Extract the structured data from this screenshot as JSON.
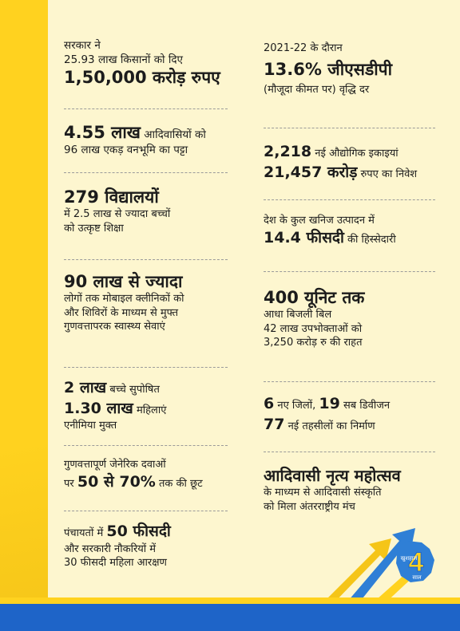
{
  "left": [
    {
      "lines": [
        "सरकार ने",
        "25.93 लाख किसानों को दिए",
        "1,50,000 करोड़ रुपए"
      ]
    },
    {
      "big": "4.55 लाख",
      "rest1": " आदिवासियों को",
      "line2": "96 लाख एकड़ वनभूमि का पट्टा"
    },
    {
      "big": "279 विद्यालयों",
      "line2": "में 2.5 लाख से ज्यादा बच्चों",
      "line3": "को उत्कृष्ट शिक्षा"
    },
    {
      "big": "90 लाख से ज्यादा",
      "line2": "लोगों तक मोबाइल क्लीनिकों को",
      "line3": "और शिविरों के माध्यम से मुफ्त",
      "line4": "गुणवत्तापरक स्वास्थ्य सेवाएं"
    },
    {
      "big1": "2 लाख",
      "rest1": " बच्चे सुपोषित",
      "big2": "1.30 लाख",
      "rest2": " महिलाएं",
      "line3": "एनीमिया मुक्त"
    },
    {
      "line1": "गुणवत्तापूर्ण जेनेरिक दवाओं",
      "pre2": "पर ",
      "big2": "50 से 70%",
      "rest2": " तक की छूट"
    },
    {
      "pre1": "पंचायतों में ",
      "big1": "50 फीसदी",
      "line2": "और सरकारी नौकरियों में",
      "line3": "30 फीसदी महिला आरक्षण"
    }
  ],
  "right": [
    {
      "line1": "2021-22 के दौरान",
      "big": "13.6% जीएसडीपी",
      "line3": "(मौजूदा कीमत पर) वृद्धि दर"
    },
    {
      "big1": "2,218",
      "rest1": " नई औद्योगिक इकाइयां",
      "big2": "21,457 करोड़",
      "rest2": " रुपए का निवेश"
    },
    {
      "line1": "देश के कुल खनिज उत्पादन में",
      "big": "14.4 फीसदी",
      "rest": " की हिस्सेदारी"
    },
    {
      "big": "400 यूनिट तक",
      "line2": "आधा बिजली बिल",
      "line3": "42 लाख उपभोक्ताओं को",
      "line4": "3,250 करोड़ रु की राहत"
    },
    {
      "big1": "6",
      "rest1": " नए जिलों, ",
      "big1b": "19",
      "rest1b": " सब डिवीजन",
      "big2": "77",
      "rest2": " नई तहसीलों का निर्माण"
    },
    {
      "big": "आदिवासी नृत्य महोत्सव",
      "line2": "के माध्यम से आदिवासी संस्कृति",
      "line3": "को मिला अंतरराष्ट्रीय मंच"
    }
  ],
  "logo": {
    "number": "4",
    "top": "खुशहाल",
    "bottom": "साल"
  },
  "colors": {
    "yellow": "#ffd21f",
    "blue": "#1e64c8",
    "cream": "#fdf6cf",
    "arrow_blue": "#2f7fd6"
  }
}
